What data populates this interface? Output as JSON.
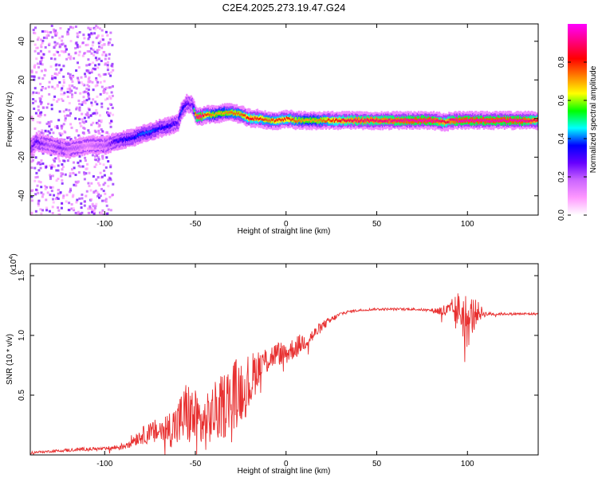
{
  "title": "C2E4.2025.273.19.47.G24",
  "chart_data": [
    {
      "type": "heatmap",
      "title": "C2E4.2025.273.19.47.G24",
      "xlabel": "Height of straight line (km)",
      "ylabel": "Frequency (Hz)",
      "xlim": [
        -141,
        139
      ],
      "ylim": [
        -50,
        49
      ],
      "xticks": [
        -100,
        -50,
        0,
        50,
        100
      ],
      "xtick_labels": [
        "-100",
        "-50",
        "0",
        "50",
        "100"
      ],
      "yticks": [
        -40,
        -20,
        0,
        20,
        40
      ],
      "ytick_labels": [
        "-40",
        "-20",
        "0",
        "20",
        "40"
      ],
      "ridge": {
        "x": [
          -141,
          -138,
          -135,
          -130,
          -125,
          -120,
          -115,
          -110,
          -105,
          -100,
          -95,
          -90,
          -85,
          -80,
          -75,
          -70,
          -65,
          -60,
          -58,
          -55,
          -52,
          -50,
          -47,
          -45,
          -40,
          -35,
          -30,
          -25,
          -20,
          -15,
          -10,
          -5,
          0,
          5,
          10,
          15,
          20,
          25,
          30,
          40,
          50,
          60,
          70,
          80,
          88,
          90,
          95,
          100,
          110,
          120,
          130,
          139
        ],
        "y": [
          -15,
          -12,
          -13,
          -14,
          -15,
          -16,
          -15,
          -14,
          -14,
          -14,
          -12,
          -11,
          -10,
          -8,
          -7,
          -5,
          -4,
          -2,
          4,
          8,
          7,
          1,
          1,
          2,
          2,
          3,
          3,
          2,
          0,
          0,
          -1,
          -1,
          0,
          -1,
          -1,
          -1,
          -1,
          -1,
          -1,
          -1,
          -1,
          -1,
          -1,
          -1,
          -2,
          -1,
          -1,
          -1,
          -1,
          -1,
          -1,
          -1
        ],
        "amplitude": [
          0.25,
          0.3,
          0.25,
          0.2,
          0.25,
          0.2,
          0.2,
          0.15,
          0.2,
          0.2,
          0.3,
          0.35,
          0.35,
          0.4,
          0.4,
          0.35,
          0.35,
          0.3,
          0.4,
          0.3,
          0.25,
          0.9,
          0.95,
          0.8,
          0.7,
          0.7,
          0.75,
          0.75,
          0.85,
          0.8,
          0.75,
          0.8,
          0.8,
          0.75,
          0.7,
          0.7,
          0.75,
          0.8,
          0.85,
          0.9,
          0.9,
          0.92,
          0.95,
          0.95,
          0.85,
          0.9,
          0.95,
          0.95,
          0.95,
          0.95,
          0.95,
          0.85
        ]
      },
      "colorbar": {
        "label": "Normalized spectral amplitude",
        "ticks": [
          0.0,
          0.2,
          0.4,
          0.6,
          0.8
        ],
        "tick_labels": [
          "0.0",
          "0.2",
          "0.4",
          "0.6",
          "0.8"
        ],
        "range": [
          0,
          1
        ],
        "colormap": [
          "#ffffff",
          "#ff99ff",
          "#cc66ff",
          "#6600ff",
          "#0000ff",
          "#00ffff",
          "#00ff00",
          "#ffff00",
          "#ff8000",
          "#ff0000",
          "#ff0080",
          "#ff00ff"
        ]
      }
    },
    {
      "type": "line",
      "xlabel": "Height of straight line (km)",
      "ylabel": "SNR (10 * v/v)",
      "scale_label": "(x10",
      "scale_exponent": "4",
      "scale_close": ")",
      "xlim": [
        -141,
        139
      ],
      "ylim": [
        0,
        16000
      ],
      "xticks": [
        -100,
        -50,
        0,
        50,
        100
      ],
      "xtick_labels": [
        "-100",
        "-50",
        "0",
        "50",
        "100"
      ],
      "yticks": [
        5000,
        10000,
        15000
      ],
      "ytick_labels": [
        "0.5",
        "1.0",
        "1.5"
      ],
      "color": "#e83030",
      "series": [
        {
          "name": "SNR",
          "x": [
            -141,
            -130,
            -120,
            -110,
            -100,
            -90,
            -85,
            -80,
            -75,
            -70,
            -65,
            -60,
            -55,
            -50,
            -45,
            -40,
            -35,
            -30,
            -25,
            -20,
            -15,
            -10,
            -5,
            0,
            5,
            10,
            15,
            20,
            25,
            30,
            35,
            40,
            50,
            60,
            70,
            80,
            90,
            95,
            100,
            105,
            110,
            120,
            130,
            139
          ],
          "y": [
            200,
            300,
            400,
            500,
            500,
            700,
            1200,
            1600,
            1800,
            2000,
            2200,
            2500,
            3500,
            3000,
            2500,
            3500,
            4000,
            5000,
            5500,
            6000,
            7500,
            8000,
            8500,
            8500,
            9000,
            9500,
            10000,
            10800,
            11300,
            11800,
            12000,
            12100,
            12200,
            12200,
            12200,
            12100,
            12000,
            12200,
            11200,
            12000,
            11800,
            11800,
            11800,
            11800
          ],
          "noise": [
            100,
            100,
            150,
            150,
            150,
            300,
            500,
            700,
            900,
            1200,
            1500,
            2000,
            2800,
            2500,
            2300,
            2500,
            2800,
            3000,
            2800,
            2500,
            1500,
            1200,
            1000,
            1000,
            900,
            800,
            600,
            400,
            300,
            150,
            120,
            100,
            100,
            100,
            100,
            100,
            800,
            1500,
            2500,
            1000,
            200,
            100,
            100,
            100
          ]
        }
      ]
    }
  ]
}
